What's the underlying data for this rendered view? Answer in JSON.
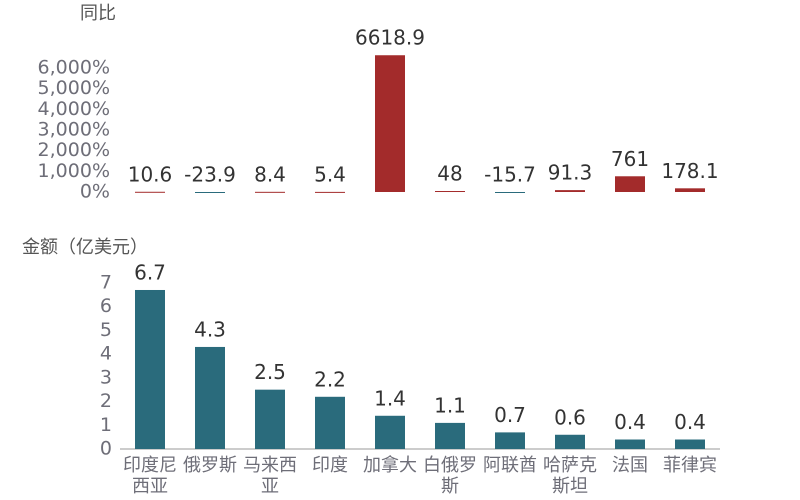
{
  "chart_data": [
    {
      "type": "bar",
      "title": "同比",
      "values": [
        10.6,
        -23.9,
        8.4,
        5.4,
        6618.9,
        48,
        -15.7,
        91.3,
        761,
        178.1
      ],
      "color": "#a32b2b",
      "negative_color": "#2a6b7c",
      "ylim": [
        0,
        6800
      ],
      "yticks": [
        {
          "value": 0,
          "label": "0%"
        },
        {
          "value": 1000,
          "label": "1,000%"
        },
        {
          "value": 2000,
          "label": "2,000%"
        },
        {
          "value": 3000,
          "label": "3,000%"
        },
        {
          "value": 4000,
          "label": "4,000%"
        },
        {
          "value": 5000,
          "label": "5,000%"
        },
        {
          "value": 6000,
          "label": "6,000%"
        }
      ]
    },
    {
      "type": "bar",
      "title": "金额（亿美元）",
      "categories": [
        "印度尼西亚",
        "俄罗斯",
        "马来西亚",
        "印度",
        "加拿大",
        "白俄罗斯",
        "阿联酋",
        "哈萨克斯坦",
        "法国",
        "菲律宾"
      ],
      "values": [
        6.7,
        4.3,
        2.5,
        2.2,
        1.4,
        1.1,
        0.7,
        0.6,
        0.4,
        0.4
      ],
      "color": "#2a6b7c",
      "ylim": [
        0,
        7.5
      ],
      "yticks": [
        0,
        1,
        2,
        3,
        4,
        5,
        6,
        7
      ]
    }
  ]
}
